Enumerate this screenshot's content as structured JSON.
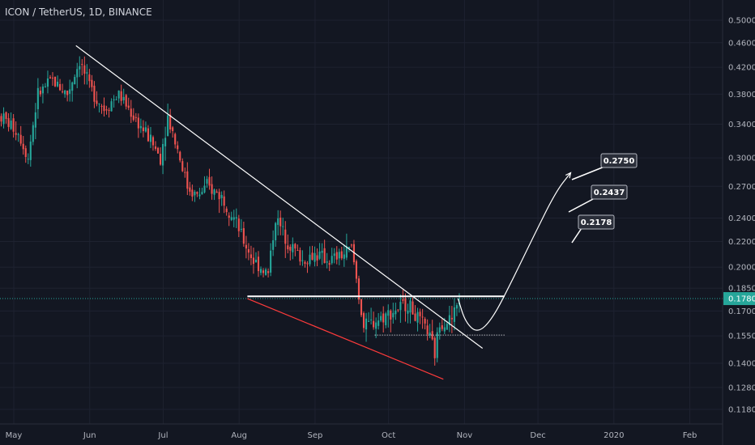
{
  "header": {
    "title": "ICON / TetherUS, 1D, BINANCE"
  },
  "chart_data": {
    "type": "candlestick",
    "symbol": "ICON / TetherUS",
    "interval": "1D",
    "exchange": "BINANCE",
    "y_scale": "log",
    "ylim": [
      0.1118,
      0.52
    ],
    "xlim_days": [
      "2019-05-01",
      "2020-02-20"
    ],
    "x_ticks": [
      "May",
      "Jun",
      "Jul",
      "Aug",
      "Sep",
      "Oct",
      "Nov",
      "Dec",
      "2020",
      "Feb"
    ],
    "y_ticks": [
      "0.5000",
      "0.4600",
      "0.4200",
      "0.3800",
      "0.3400",
      "0.3000",
      "0.2700",
      "0.2400",
      "0.2200",
      "0.2000",
      "0.1850",
      "0.1700",
      "0.1550",
      "0.1400",
      "0.1280",
      "0.1180"
    ],
    "current_price": "0.1780",
    "colors": {
      "background": "#131722",
      "up": "#26a69a",
      "down": "#ef5350",
      "grid": "#1e2230",
      "price_line": "#26a69a",
      "price_tag": "#26a69a",
      "trendline": "#ffffff",
      "support_line": "#ff3b3b"
    },
    "price_path": [
      [
        "2019-05-01",
        0.35
      ],
      [
        "2019-05-08",
        0.33
      ],
      [
        "2019-05-12",
        0.3
      ],
      [
        "2019-05-16",
        0.38
      ],
      [
        "2019-05-22",
        0.4
      ],
      [
        "2019-05-28",
        0.38
      ],
      [
        "2019-06-02",
        0.43
      ],
      [
        "2019-06-06",
        0.39
      ],
      [
        "2019-06-12",
        0.36
      ],
      [
        "2019-06-18",
        0.38
      ],
      [
        "2019-06-24",
        0.35
      ],
      [
        "2019-07-01",
        0.32
      ],
      [
        "2019-07-05",
        0.3
      ],
      [
        "2019-07-08",
        0.35
      ],
      [
        "2019-07-12",
        0.31
      ],
      [
        "2019-07-16",
        0.27
      ],
      [
        "2019-07-20",
        0.26
      ],
      [
        "2019-07-24",
        0.27
      ],
      [
        "2019-07-30",
        0.26
      ],
      [
        "2019-08-04",
        0.24
      ],
      [
        "2019-08-08",
        0.22
      ],
      [
        "2019-08-12",
        0.205
      ],
      [
        "2019-08-18",
        0.195
      ],
      [
        "2019-08-21",
        0.24
      ],
      [
        "2019-08-26",
        0.22
      ],
      [
        "2019-09-01",
        0.205
      ],
      [
        "2019-09-06",
        0.21
      ],
      [
        "2019-09-12",
        0.205
      ],
      [
        "2019-09-18",
        0.21
      ],
      [
        "2019-09-21",
        0.215
      ],
      [
        "2019-09-24",
        0.18
      ],
      [
        "2019-09-26",
        0.16
      ],
      [
        "2019-10-02",
        0.165
      ],
      [
        "2019-10-08",
        0.17
      ],
      [
        "2019-10-14",
        0.175
      ],
      [
        "2019-10-18",
        0.165
      ],
      [
        "2019-10-22",
        0.158
      ],
      [
        "2019-10-25",
        0.145
      ],
      [
        "2019-10-27",
        0.163
      ],
      [
        "2019-11-01",
        0.165
      ],
      [
        "2019-11-04",
        0.178
      ]
    ],
    "drawings": {
      "descending_trendline": {
        "from": [
          "2019-06-01",
          0.455
        ],
        "to": [
          "2019-11-14",
          0.148
        ]
      },
      "lower_support_line": {
        "from": [
          "2019-08-10",
          0.178
        ],
        "to": [
          "2019-10-29",
          0.132
        ]
      },
      "resistance_level": {
        "from": [
          "2019-08-10",
          0.1795
        ],
        "to": [
          "2019-11-23",
          0.1795
        ],
        "value": 0.1795
      },
      "dotted_level": {
        "from": [
          "2019-10-01",
          0.1555
        ],
        "to": [
          "2019-11-23",
          0.1555
        ],
        "value": 0.1555
      },
      "projection_path": [
        [
          "2019-11-04",
          0.178
        ],
        [
          "2019-11-07",
          0.163
        ],
        [
          "2019-11-12",
          0.1565
        ],
        [
          "2019-11-18",
          0.165
        ],
        [
          "2019-11-26",
          0.19
        ],
        [
          "2019-12-05",
          0.225
        ],
        [
          "2019-12-14",
          0.265
        ],
        [
          "2019-12-20",
          0.284
        ]
      ]
    },
    "targets": [
      {
        "label": "0.2750",
        "value": 0.275
      },
      {
        "label": "0.2437",
        "value": 0.2437
      },
      {
        "label": "0.2178",
        "value": 0.2178
      }
    ]
  }
}
